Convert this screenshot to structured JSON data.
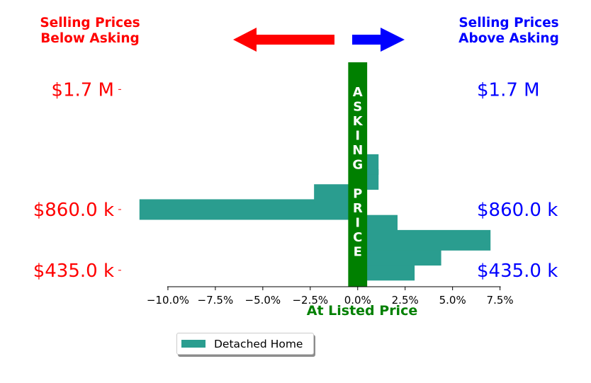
{
  "colors": {
    "bar": "#2a9d8f",
    "asking_band": "#008000",
    "below": "#ff0000",
    "above": "#0000ff",
    "listed": "#008000"
  },
  "header": {
    "left_title_line1": "Selling Prices",
    "left_title_line2": "Below Asking",
    "right_title_line1": "Selling Prices",
    "right_title_line2": "Above Asking"
  },
  "band_label": [
    "A",
    "S",
    "K",
    "I",
    "N",
    "G",
    "",
    "P",
    "R",
    "I",
    "C",
    "E"
  ],
  "x_axis_label": "At Listed Price",
  "legend": {
    "label": "Detached Home"
  },
  "chart_data": {
    "type": "bar",
    "orientation": "horizontal",
    "xlim": [
      -12.5,
      8.0
    ],
    "ylim": [
      320000,
      1890000
    ],
    "x_ticks": [
      -10.0,
      -7.5,
      -5.0,
      -2.5,
      0.0,
      2.5,
      5.0,
      7.5
    ],
    "x_tick_labels": [
      "−10.0%",
      "−7.5%",
      "−5.0%",
      "−2.5%",
      "0.0%",
      "2.5%",
      "5.0%",
      "7.5%"
    ],
    "y_ticks": [
      435000,
      860000,
      1700000
    ],
    "left_y_tick_labels": [
      "$435.0 k",
      "$860.0 k",
      "$1.7 M"
    ],
    "right_y_tick_labels": [
      "$435.0 k",
      "$860.0 k",
      "$1.7 M"
    ],
    "band_range": [
      -0.5,
      0.5
    ],
    "series": [
      {
        "name": "Detached Home",
        "bars": [
          {
            "y": 435000,
            "x": 3.0
          },
          {
            "y": 540000,
            "x": 4.4
          },
          {
            "y": 645000,
            "x": 7.0
          },
          {
            "y": 750000,
            "x": 2.1
          },
          {
            "y": 860000,
            "x": -11.5
          },
          {
            "y": 965000,
            "x": -2.3
          },
          {
            "y": 1070000,
            "x": 1.1
          },
          {
            "y": 1175000,
            "x": 1.1
          }
        ]
      }
    ]
  }
}
